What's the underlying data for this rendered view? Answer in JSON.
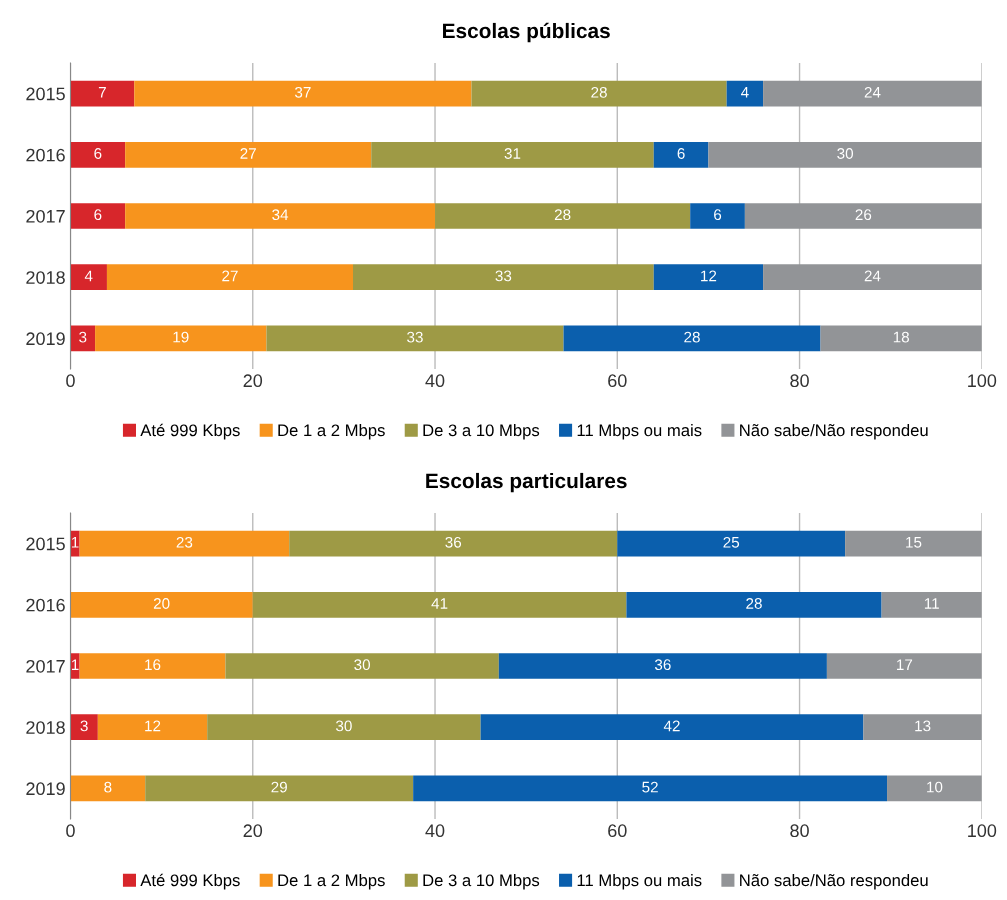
{
  "chart_data": [
    {
      "type": "bar",
      "title": "Escolas públicas",
      "orientation": "horizontal",
      "stacked": true,
      "categories": [
        "2015",
        "2016",
        "2017",
        "2018",
        "2019"
      ],
      "xlim": [
        0,
        100
      ],
      "xticks": [
        0,
        20,
        40,
        60,
        80,
        100
      ],
      "grid": "x",
      "legend": "bottom",
      "series": [
        {
          "name": "Até 999 Kbps",
          "color": "#d7262b",
          "values": [
            7,
            6,
            6,
            4,
            2.7
          ],
          "value_labels": [
            "7",
            "6",
            "6",
            "4",
            "3"
          ]
        },
        {
          "name": "De 1 a 2 Mbps",
          "color": "#f7941d",
          "values": [
            37,
            27,
            34,
            27,
            18.8
          ],
          "value_labels": [
            "37",
            "27",
            "34",
            "27",
            "19"
          ]
        },
        {
          "name": "De 3 a 10 Mbps",
          "color": "#9e9a45",
          "values": [
            28,
            31,
            28,
            33,
            32.6
          ],
          "value_labels": [
            "28",
            "31",
            "28",
            "33",
            "33"
          ]
        },
        {
          "name": "11 Mbps ou mais",
          "color": "#0b5fad",
          "values": [
            4,
            6,
            6,
            12,
            28.2
          ],
          "value_labels": [
            "4",
            "6",
            "6",
            "12",
            "28"
          ]
        },
        {
          "name": "Não sabe/Não respondeu",
          "color": "#929497",
          "values": [
            24,
            30,
            26,
            24,
            17.7
          ],
          "value_labels": [
            "24",
            "30",
            "26",
            "24",
            "18"
          ]
        }
      ]
    },
    {
      "type": "bar",
      "title": "Escolas particulares",
      "orientation": "horizontal",
      "stacked": true,
      "categories": [
        "2015",
        "2016",
        "2017",
        "2018",
        "2019"
      ],
      "xlim": [
        0,
        100
      ],
      "xticks": [
        0,
        20,
        40,
        60,
        80,
        100
      ],
      "grid": "x",
      "legend": "bottom",
      "series": [
        {
          "name": "Até 999 Kbps",
          "color": "#d7262b",
          "values": [
            1,
            0,
            1,
            3,
            0
          ],
          "value_labels": [
            "1",
            null,
            "1",
            "3",
            null
          ]
        },
        {
          "name": "De 1 a 2 Mbps",
          "color": "#f7941d",
          "values": [
            23,
            20,
            16,
            12,
            8.2
          ],
          "value_labels": [
            "23",
            "20",
            "16",
            "12",
            "8"
          ]
        },
        {
          "name": "De 3 a 10 Mbps",
          "color": "#9e9a45",
          "values": [
            36,
            41,
            30,
            30,
            29.4
          ],
          "value_labels": [
            "36",
            "41",
            "30",
            "30",
            "29"
          ]
        },
        {
          "name": "11 Mbps ou mais",
          "color": "#0b5fad",
          "values": [
            25,
            28,
            36,
            42,
            52.0
          ],
          "value_labels": [
            "25",
            "28",
            "36",
            "42",
            "52"
          ]
        },
        {
          "name": "Não sabe/Não respondeu",
          "color": "#929497",
          "values": [
            15,
            11,
            17,
            13,
            10.4
          ],
          "value_labels": [
            "15",
            "11",
            "17",
            "13",
            "10"
          ]
        }
      ]
    }
  ]
}
